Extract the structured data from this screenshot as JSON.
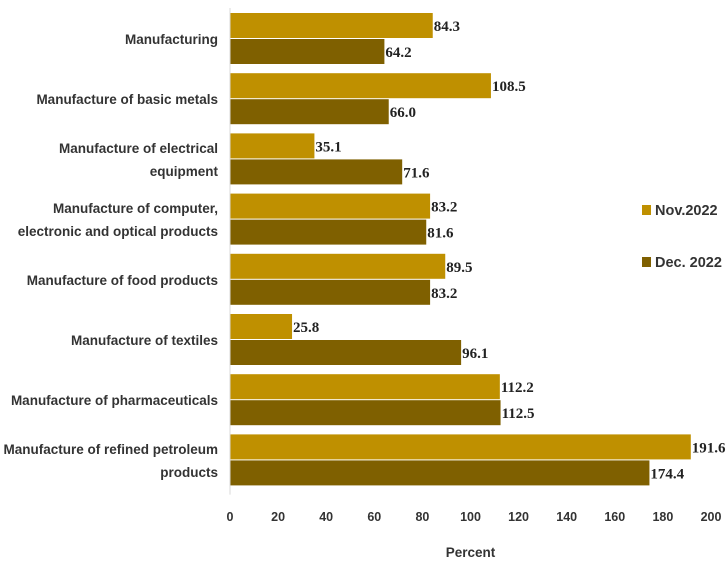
{
  "chart_data": {
    "type": "bar",
    "orientation": "horizontal",
    "categories": [
      "Manufacturing",
      "Manufacture of basic metals",
      "Manufacture of electrical equipment",
      "Manufacture of computer, electronic and optical products",
      "Manufacture of food products",
      "Manufacture of textiles",
      "Manufacture of pharmaceuticals",
      "Manufacture of  refined petroleum products"
    ],
    "category_lines": [
      [
        "Manufacturing"
      ],
      [
        "Manufacture of basic metals"
      ],
      [
        "Manufacture of electrical",
        "equipment"
      ],
      [
        "Manufacture of computer,",
        "electronic and optical products"
      ],
      [
        "Manufacture of food products"
      ],
      [
        "Manufacture of textiles"
      ],
      [
        "Manufacture of pharmaceuticals"
      ],
      [
        "Manufacture of  refined petroleum",
        "products"
      ]
    ],
    "series": [
      {
        "name": "Nov.2022",
        "color": "#bf9000",
        "values": [
          84.3,
          108.5,
          35.1,
          83.2,
          89.5,
          25.8,
          112.2,
          191.6
        ],
        "labels": [
          "84.3",
          "108.5",
          "35.1",
          "83.2",
          "89.5",
          "25.8",
          "112.2",
          "191.6"
        ]
      },
      {
        "name": "Dec. 2022",
        "color": "#7f6000",
        "values": [
          64.2,
          66.0,
          71.6,
          81.6,
          83.2,
          96.1,
          112.5,
          174.4
        ],
        "labels": [
          "64.2",
          "66.0",
          "71.6",
          "81.6",
          "83.2",
          "96.1",
          "112.5",
          "174.4"
        ]
      }
    ],
    "xlabel": "Percent",
    "ylabel": "",
    "xlim": [
      0,
      200
    ],
    "xticks": [
      "0",
      "20",
      "40",
      "60",
      "80",
      "100",
      "120",
      "140",
      "160",
      "180",
      "200"
    ],
    "grid": false,
    "legend_position": "right"
  }
}
